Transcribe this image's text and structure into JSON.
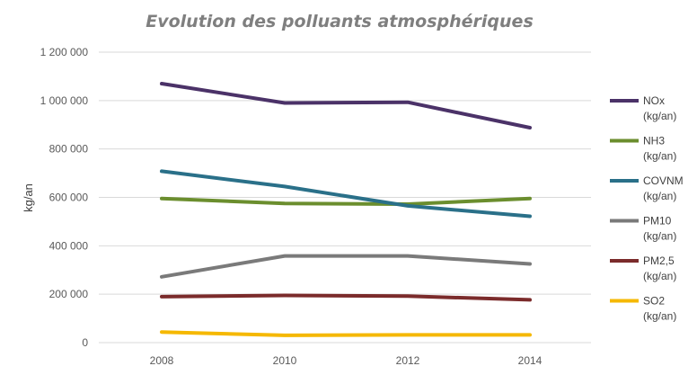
{
  "chart_data": {
    "type": "line",
    "title": "Evolution des polluants atmosphériques",
    "xlabel": "",
    "ylabel": "kg/an",
    "categories": [
      "2008",
      "2010",
      "2012",
      "2014"
    ],
    "ylim": [
      0,
      1200000
    ],
    "yticks": [
      0,
      200000,
      400000,
      600000,
      800000,
      1000000,
      1200000
    ],
    "ytick_labels": [
      "0",
      "200 000",
      "400 000",
      "600 000",
      "800 000",
      "1 000 000",
      "1 200 000"
    ],
    "grid": true,
    "legend_position": "right",
    "series": [
      {
        "name": "NOx",
        "unit": "(kg/an)",
        "color": "#4b3268",
        "values": [
          1070000,
          990000,
          993000,
          888000
        ]
      },
      {
        "name": "NH3",
        "unit": "(kg/an)",
        "color": "#6b8e2e",
        "values": [
          595000,
          575000,
          572000,
          595000
        ]
      },
      {
        "name": "COVNM",
        "unit": "(kg/an)",
        "color": "#2a7089",
        "values": [
          708000,
          645000,
          565000,
          522000
        ]
      },
      {
        "name": "PM10",
        "unit": "(kg/an)",
        "color": "#7a7a7a",
        "values": [
          272000,
          358000,
          358000,
          325000
        ]
      },
      {
        "name": "PM2,5",
        "unit": "(kg/an)",
        "color": "#7b2b2b",
        "values": [
          190000,
          195000,
          192000,
          177000
        ]
      },
      {
        "name": "SO2",
        "unit": "(kg/an)",
        "color": "#f5b800",
        "values": [
          44000,
          30000,
          32000,
          32000
        ]
      }
    ]
  }
}
